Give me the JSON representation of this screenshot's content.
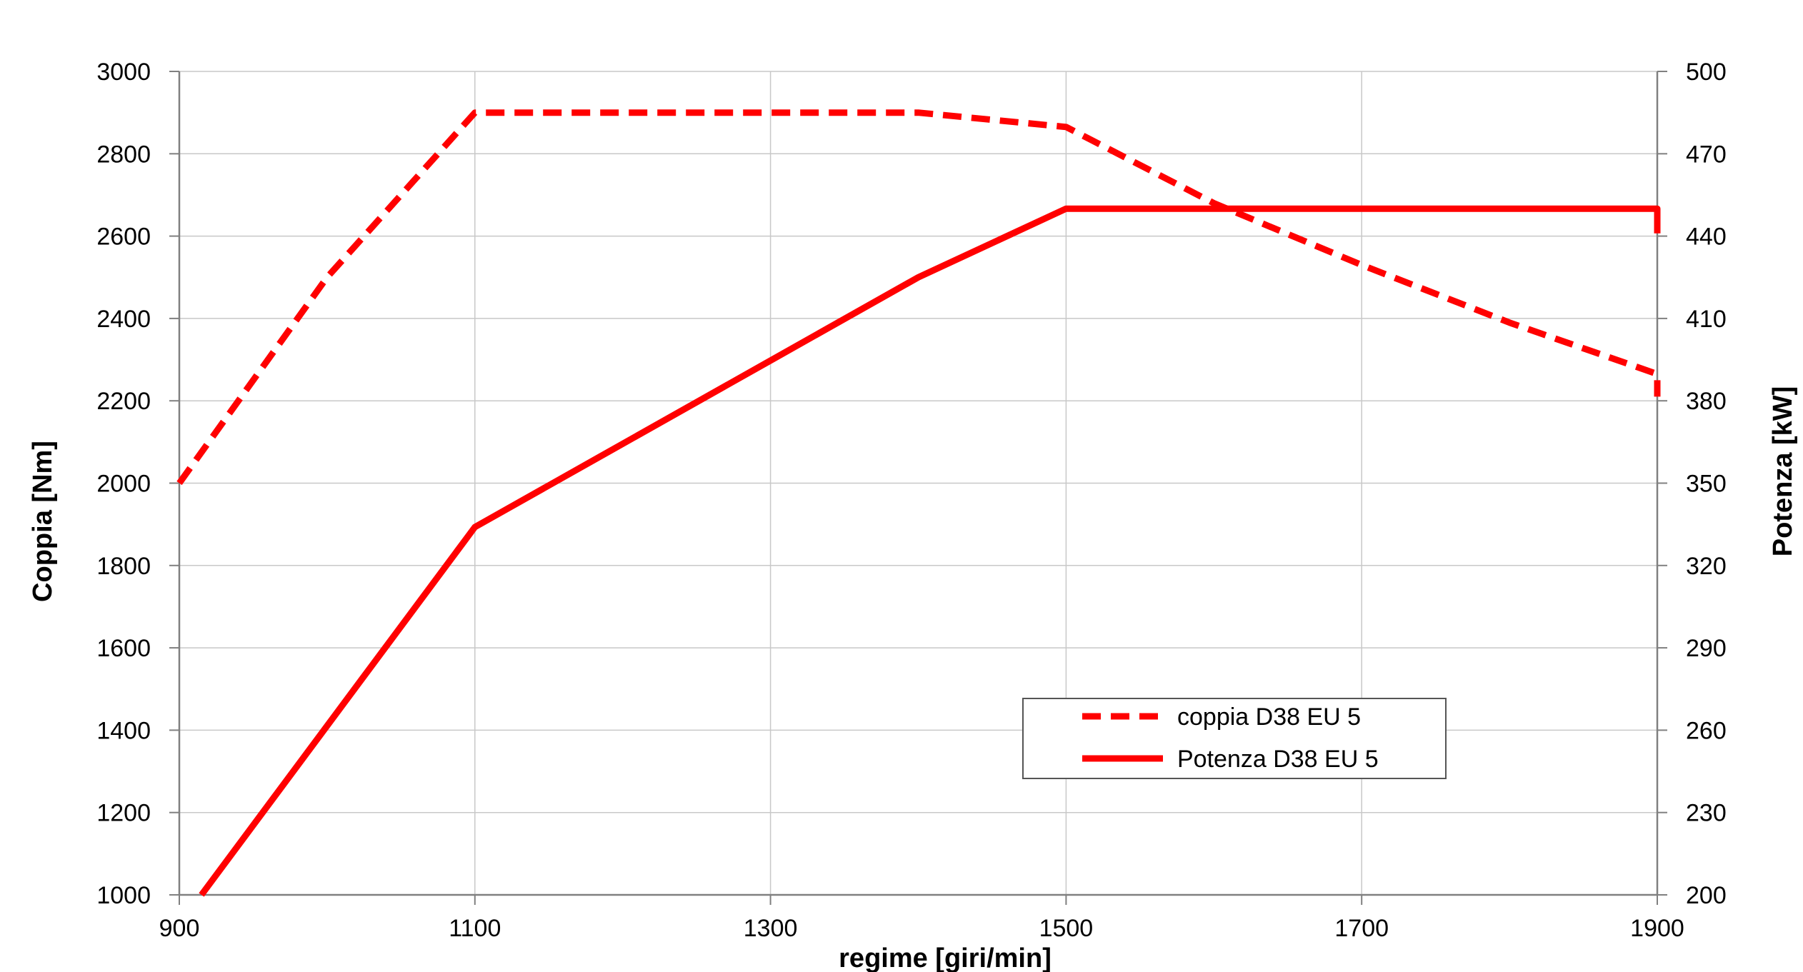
{
  "chart_data": {
    "type": "line",
    "title": "",
    "xlabel": "regime [giri/min]",
    "ylabel_left": "Coppia [Nm]",
    "ylabel_right": "Potenza [kW]",
    "xlim": [
      900,
      1900
    ],
    "ylim_left": [
      1000,
      3000
    ],
    "ylim_right": [
      200,
      500
    ],
    "x_ticks": [
      "900",
      "1100",
      "1300",
      "1500",
      "1700",
      "1900"
    ],
    "y_left_ticks": [
      "1000",
      "1200",
      "1400",
      "1600",
      "1800",
      "2000",
      "2200",
      "2400",
      "2600",
      "2800",
      "3000"
    ],
    "y_right_ticks": [
      "200",
      "230",
      "260",
      "290",
      "320",
      "350",
      "380",
      "410",
      "440",
      "470",
      "500"
    ],
    "grid": true,
    "legend_position": "bottom-right",
    "colors": {
      "series": "#ff0000",
      "grid": "#c8c8c8",
      "axis": "#808080"
    },
    "series": [
      {
        "name": "coppia D38 EU 5",
        "axis": "left",
        "style": "dashed",
        "x": [
          900,
          1000,
          1100,
          1400,
          1500,
          1600,
          1700,
          1800,
          1900,
          1900
        ],
        "y": [
          2000,
          2500,
          2900,
          2900,
          2865,
          2680,
          2530,
          2390,
          2265,
          2210
        ]
      },
      {
        "name": "Potenza D38 EU 5",
        "axis": "right",
        "style": "solid",
        "x": [
          915,
          1100,
          1400,
          1500,
          1900,
          1900
        ],
        "y": [
          200,
          334,
          425,
          450,
          450,
          441
        ]
      }
    ]
  }
}
